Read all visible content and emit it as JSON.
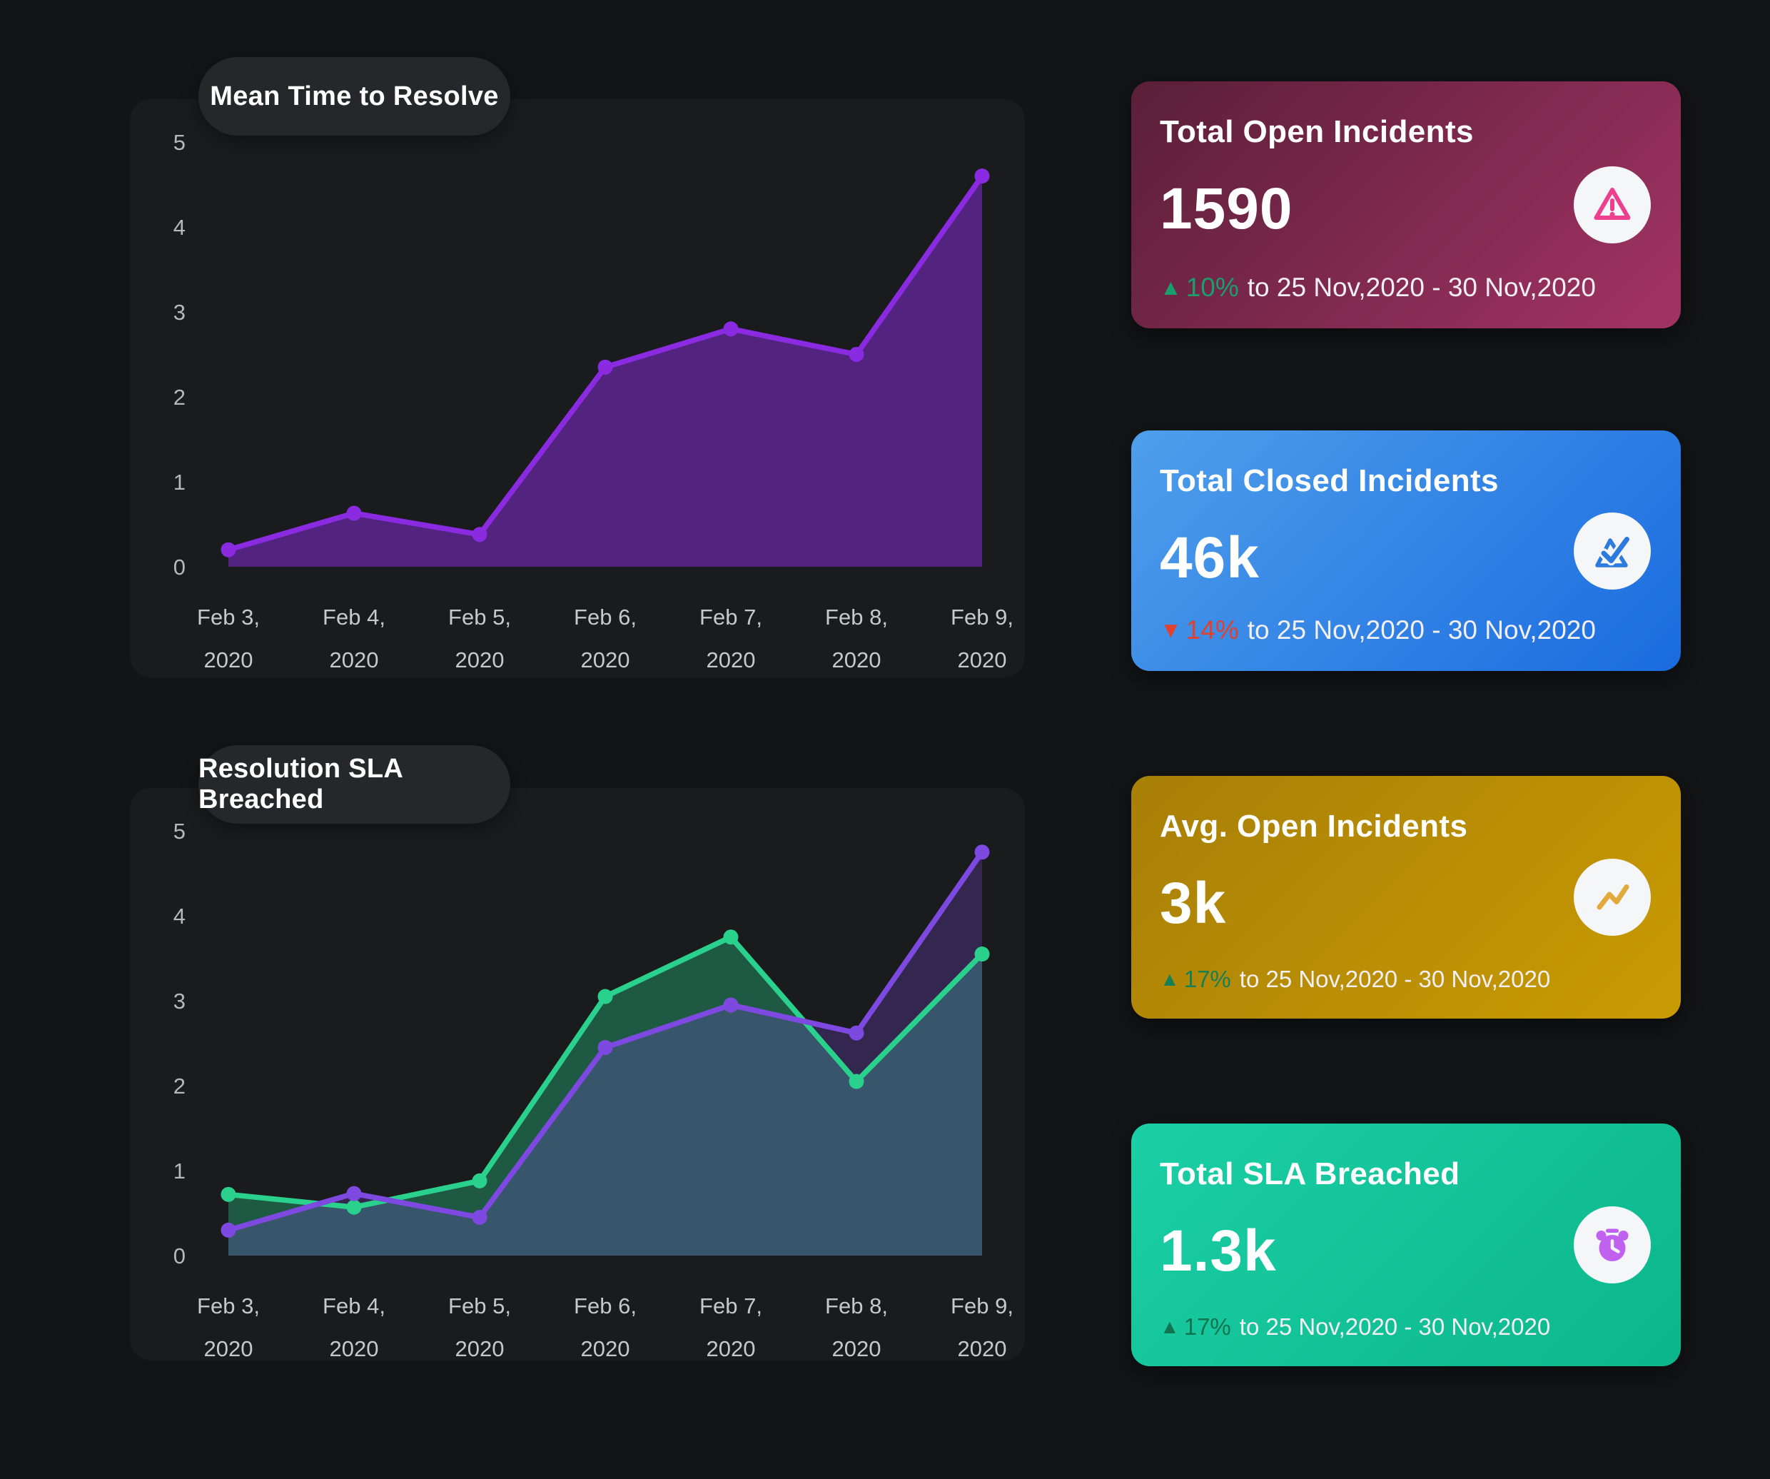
{
  "chart_data": [
    {
      "type": "area",
      "title": "Mean Time to Resolve",
      "xlabel": "",
      "ylabel": "",
      "x_labels": [
        "Feb 3, 2020",
        "Feb 4, 2020",
        "Feb 5, 2020",
        "Feb 6, 2020",
        "Feb 7, 2020",
        "Feb 8, 2020",
        "Feb 9, 2020"
      ],
      "y_ticks": [
        0,
        1,
        2,
        3,
        4,
        5
      ],
      "ylim": [
        0,
        5
      ],
      "grid": false,
      "legend_position": "none",
      "series": [
        {
          "name": "mean-time-to-resolve",
          "color": "#8a2be2",
          "fill_opacity": 0.5,
          "values": [
            0.2,
            0.63,
            0.38,
            2.35,
            2.8,
            2.5,
            4.6
          ]
        }
      ]
    },
    {
      "type": "area",
      "title": "Resolution SLA Breached",
      "xlabel": "",
      "ylabel": "",
      "x_labels": [
        "Feb 3, 2020",
        "Feb 4, 2020",
        "Feb 5, 2020",
        "Feb 6, 2020",
        "Feb 7, 2020",
        "Feb 8, 2020",
        "Feb 9, 2020"
      ],
      "y_ticks": [
        0,
        1,
        2,
        3,
        4,
        5
      ],
      "ylim": [
        0,
        5
      ],
      "grid": false,
      "legend_position": "none",
      "series": [
        {
          "name": "sla-breached-green",
          "color": "#29d18d",
          "fill_opacity": 0.35,
          "values": [
            0.72,
            0.57,
            0.88,
            3.05,
            3.75,
            2.05,
            3.55
          ]
        },
        {
          "name": "sla-breached-purple",
          "color": "#7e49e0",
          "fill_opacity": 0.26,
          "values": [
            0.3,
            0.73,
            0.45,
            2.45,
            2.95,
            2.62,
            4.75
          ]
        }
      ]
    }
  ],
  "cards": [
    {
      "title": "Total Open Incidents",
      "value": "1590",
      "delta_arrow": "▲",
      "delta_dir": "up",
      "delta": "10%",
      "delta_color": "#1a9f6c",
      "period": "to 25 Nov,2020 - 30 Nov,2020",
      "icon": "warning-triangle-icon",
      "icon_color": "#ec3f8e",
      "bg": [
        "#5a1f38",
        "#a23364"
      ]
    },
    {
      "title": "Total Closed Incidents",
      "value": "46k",
      "delta_arrow": "▼",
      "delta_dir": "down",
      "delta": "14%",
      "delta_color": "#e2402c",
      "period": "to 25 Nov,2020 - 30 Nov,2020",
      "icon": "check-triangle-icon",
      "icon_color": "#2e7bdf",
      "bg": [
        "#4f9fec",
        "#1a6bdf"
      ]
    },
    {
      "title": "Avg. Open Incidents",
      "value": "3k",
      "delta_arrow": "▲",
      "delta_dir": "up",
      "delta": "17%",
      "delta_color": "#187f55",
      "period": "to 25 Nov,2020 - 30 Nov,2020",
      "icon": "trend-zigzag-icon",
      "icon_color": "#e2a93b",
      "bg": [
        "#a87f06",
        "#c99b04"
      ]
    },
    {
      "title": "Total SLA Breached",
      "value": "1.3k",
      "delta_arrow": "▲",
      "delta_dir": "up",
      "delta": "17%",
      "delta_color": "#12744e",
      "period": "to 25 Nov,2020 - 30 Nov,2020",
      "icon": "alarm-clock-icon",
      "icon_color": "#c161f0",
      "bg": [
        "#1bcfa6",
        "#0cb68a"
      ]
    }
  ]
}
